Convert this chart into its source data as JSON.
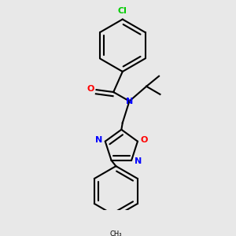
{
  "background_color": "#e8e8e8",
  "atom_colors": {
    "N": "#0000ff",
    "O": "#ff0000",
    "Cl": "#00cc00"
  },
  "bond_color": "#000000",
  "bond_width": 1.5,
  "dbo": 0.018
}
